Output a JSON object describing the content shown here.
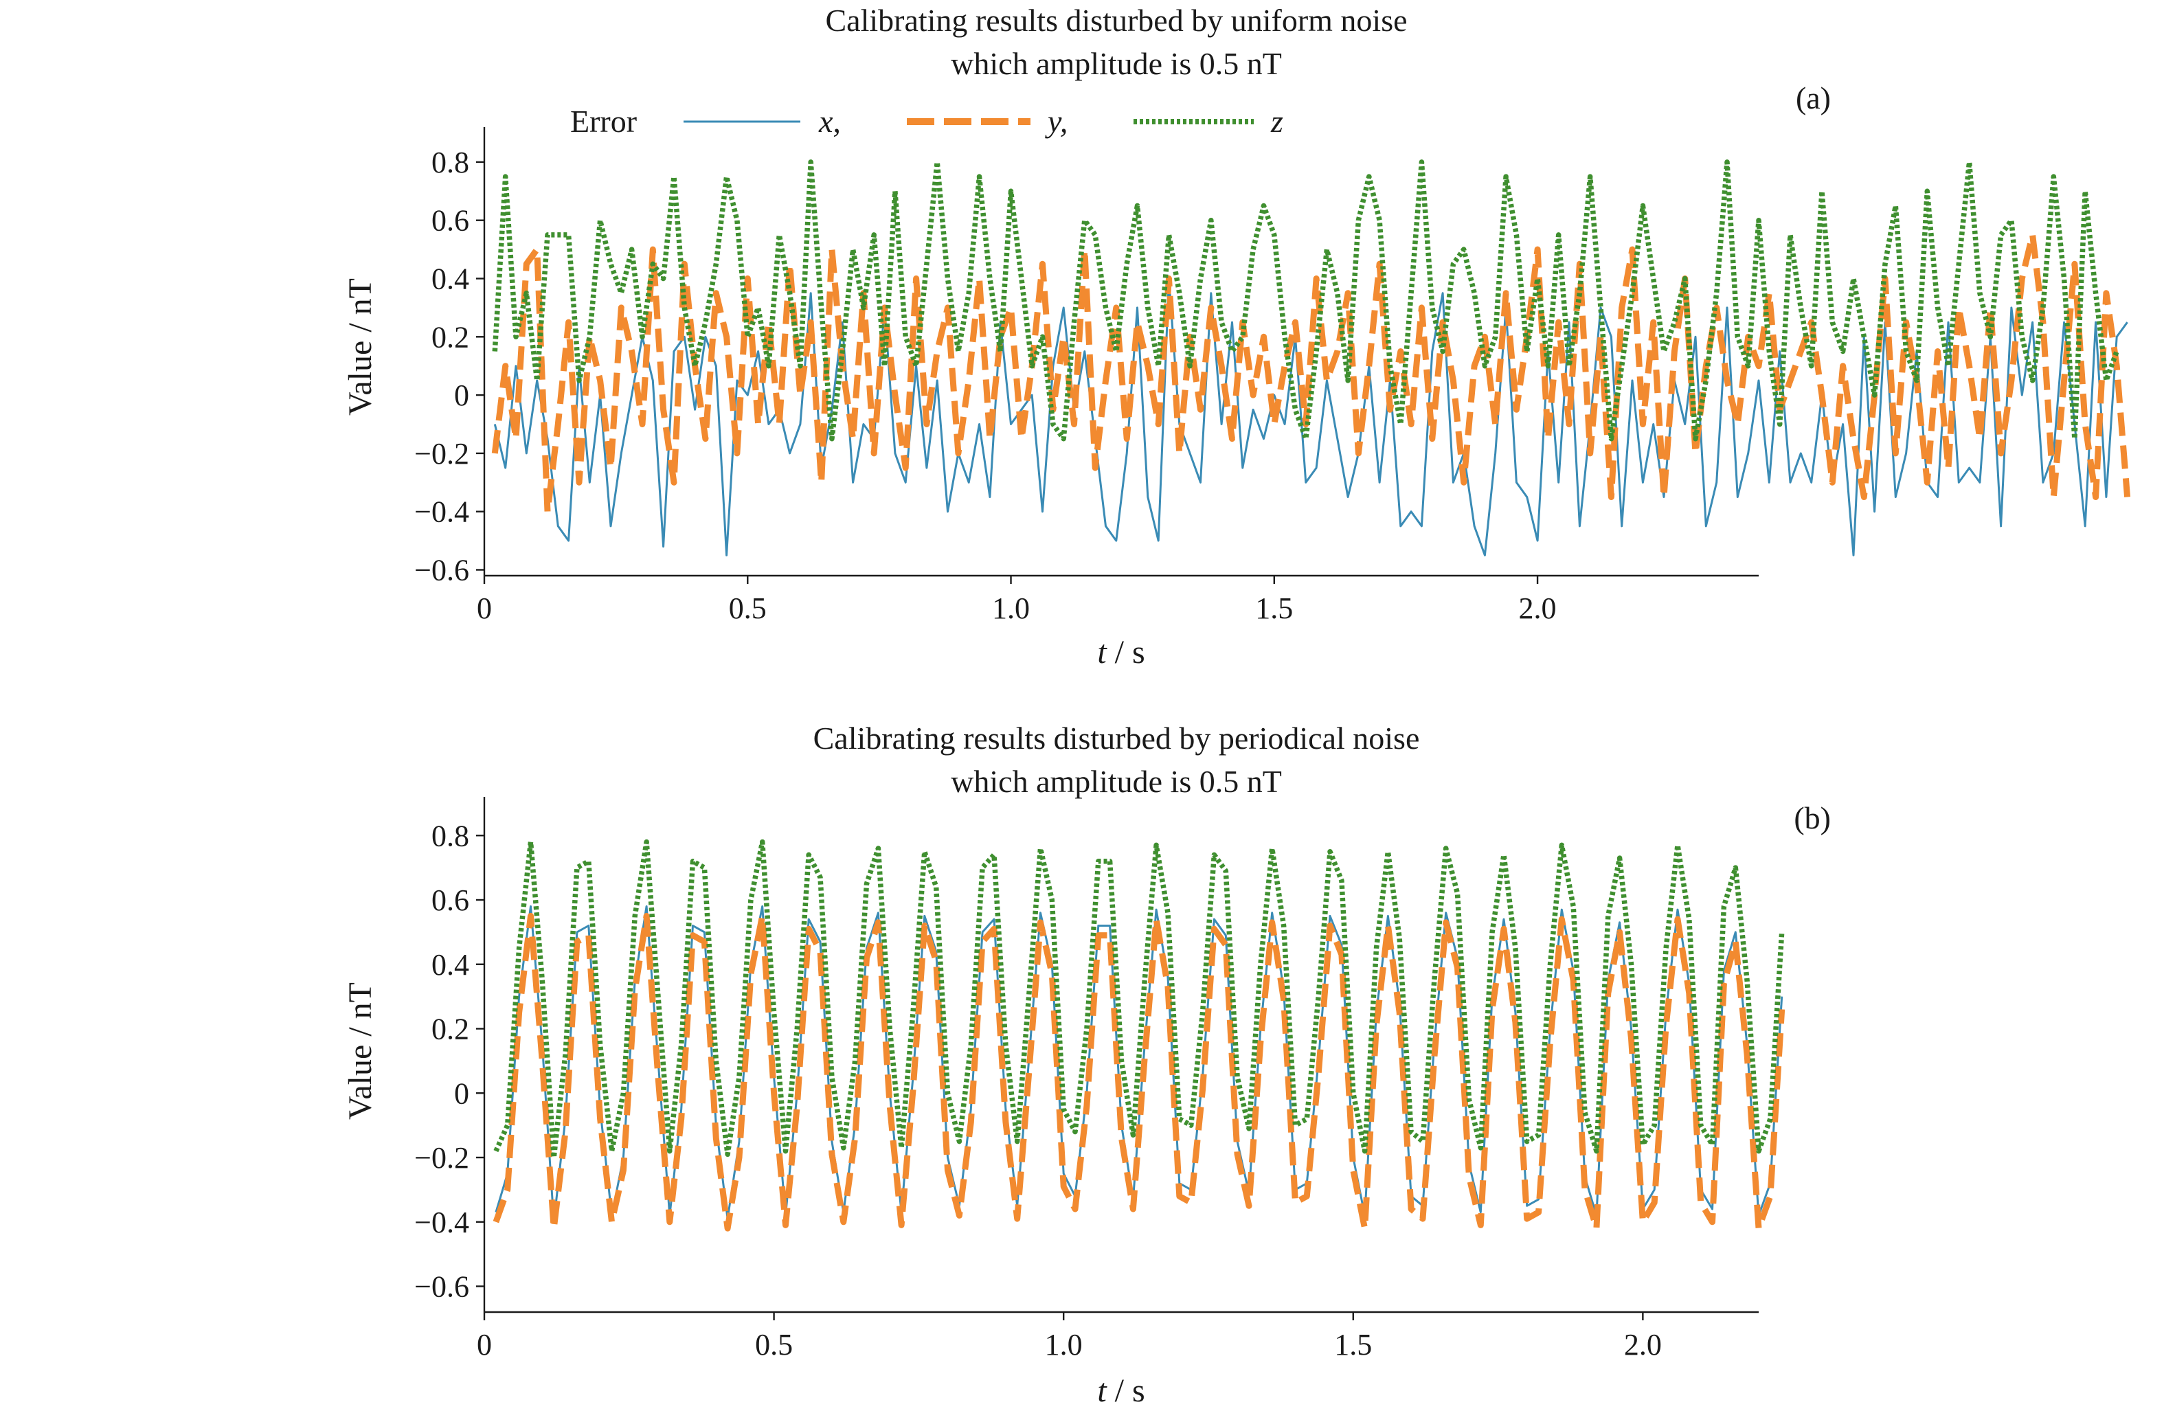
{
  "legend": {
    "heading": "Error",
    "entries": [
      {
        "label": "x,",
        "series": "x",
        "color": "#3a8bb5"
      },
      {
        "label": "y,",
        "series": "y",
        "color": "#f28a30"
      },
      {
        "label": "z",
        "series": "z",
        "color": "#3f8f2f"
      }
    ]
  },
  "chart_data": [
    {
      "type": "line",
      "panel_tag": "(a)",
      "title_line1": "Calibrating results disturbed by uniform noise",
      "title_line2": "which amplitude is 0.5 nT",
      "xlabel_var": "t",
      "xlabel_unit": " / s",
      "ylabel": "Value / nT",
      "xlim": [
        0,
        2.42
      ],
      "ylim": [
        -0.62,
        0.92
      ],
      "xticks": [
        0,
        0.5,
        1.0,
        1.5,
        2.0
      ],
      "xtick_labels": [
        "0",
        "0.5",
        "1.0",
        "1.5",
        "2.0"
      ],
      "yticks": [
        -0.6,
        -0.4,
        -0.2,
        0,
        0.2,
        0.4,
        0.6,
        0.8
      ],
      "ytick_labels": [
        "−0.6",
        "−0.4",
        "−0.2",
        "0",
        "0.2",
        "0.4",
        "0.6",
        "0.8"
      ],
      "x_start": 0.02,
      "x_step": 0.02,
      "series": [
        {
          "name": "x",
          "color": "#3a8bb5",
          "style": "solid",
          "values": [
            -0.1,
            -0.25,
            0.1,
            -0.2,
            0.05,
            -0.15,
            -0.45,
            -0.5,
            0.1,
            -0.3,
            0.0,
            -0.45,
            -0.2,
            0.0,
            0.2,
            0.05,
            -0.52,
            0.15,
            0.2,
            -0.05,
            0.2,
            0.1,
            -0.55,
            0.05,
            0.0,
            0.15,
            -0.1,
            -0.05,
            -0.2,
            -0.1,
            0.35,
            -0.25,
            -0.05,
            0.25,
            -0.3,
            -0.1,
            -0.15,
            0.3,
            -0.2,
            -0.3,
            0.1,
            -0.25,
            0.05,
            -0.4,
            -0.2,
            -0.3,
            -0.1,
            -0.35,
            0.25,
            -0.1,
            -0.05,
            0.0,
            -0.4,
            0.1,
            0.3,
            -0.05,
            0.15,
            -0.15,
            -0.45,
            -0.5,
            -0.2,
            0.3,
            -0.35,
            -0.5,
            0.4,
            -0.1,
            -0.2,
            -0.3,
            0.35,
            -0.1,
            0.25,
            -0.25,
            -0.05,
            -0.15,
            0.0,
            -0.1,
            0.2,
            -0.3,
            -0.25,
            0.05,
            -0.15,
            -0.35,
            -0.2,
            0.1,
            -0.3,
            0.05,
            -0.45,
            -0.4,
            -0.45,
            0.15,
            0.35,
            -0.3,
            -0.2,
            -0.45,
            -0.55,
            -0.2,
            0.3,
            -0.3,
            -0.35,
            -0.5,
            0.15,
            -0.3,
            0.25,
            -0.45,
            -0.1,
            0.3,
            0.2,
            -0.45,
            0.05,
            -0.3,
            -0.1,
            -0.35,
            0.05,
            -0.1,
            0.2,
            -0.45,
            -0.3,
            0.3,
            -0.35,
            -0.2,
            0.05,
            -0.3,
            0.15,
            -0.3,
            -0.2,
            -0.3,
            0.0,
            -0.3,
            -0.1,
            -0.55,
            0.2,
            -0.4,
            0.25,
            -0.35,
            -0.2,
            0.15,
            -0.3,
            -0.35,
            0.25,
            -0.3,
            -0.25,
            -0.3,
            0.2,
            -0.45,
            0.3,
            0.0,
            0.25,
            -0.3,
            -0.2,
            0.25,
            -0.1,
            -0.45,
            0.25,
            -0.35,
            0.2,
            0.25
          ]
        },
        {
          "name": "y",
          "color": "#f28a30",
          "style": "dashed",
          "values": [
            -0.2,
            0.1,
            -0.15,
            0.45,
            0.5,
            -0.4,
            -0.1,
            0.25,
            -0.3,
            0.2,
            0.05,
            -0.25,
            0.3,
            0.15,
            -0.1,
            0.5,
            -0.05,
            -0.3,
            0.45,
            0.1,
            -0.15,
            0.35,
            0.2,
            -0.2,
            0.4,
            -0.1,
            0.25,
            -0.1,
            0.45,
            0.0,
            0.25,
            -0.3,
            0.5,
            0.1,
            -0.15,
            0.35,
            -0.2,
            0.3,
            0.0,
            -0.25,
            0.4,
            -0.1,
            0.15,
            0.3,
            -0.2,
            0.05,
            0.4,
            -0.15,
            0.2,
            0.3,
            -0.15,
            0.1,
            0.45,
            -0.05,
            0.2,
            -0.1,
            0.5,
            -0.25,
            0.05,
            0.3,
            -0.15,
            0.25,
            0.1,
            -0.1,
            0.4,
            -0.2,
            0.2,
            -0.05,
            0.3,
            0.1,
            -0.15,
            0.25,
            0.0,
            0.2,
            -0.1,
            0.1,
            0.25,
            -0.1,
            0.4,
            0.05,
            0.15,
            0.35,
            -0.2,
            0.1,
            0.45,
            -0.05,
            0.15,
            -0.1,
            0.3,
            -0.15,
            0.25,
            0.05,
            -0.3,
            0.1,
            0.2,
            -0.1,
            0.35,
            -0.05,
            0.2,
            0.5,
            -0.15,
            0.25,
            -0.1,
            0.45,
            -0.2,
            0.2,
            -0.35,
            0.3,
            0.5,
            -0.1,
            0.25,
            -0.35,
            0.15,
            0.4,
            -0.2,
            0.1,
            0.3,
            0.05,
            -0.1,
            0.2,
            0.1,
            0.35,
            -0.05,
            0.05,
            0.15,
            0.25,
            0.0,
            -0.3,
            0.1,
            -0.15,
            -0.35,
            0.0,
            0.4,
            -0.2,
            0.25,
            0.05,
            -0.3,
            0.15,
            -0.25,
            0.3,
            0.1,
            -0.15,
            0.3,
            -0.2,
            0.05,
            0.4,
            0.55,
            0.25,
            -0.35,
            0.05,
            0.45,
            -0.1,
            -0.35,
            0.35,
            0.1,
            -0.35
          ]
        },
        {
          "name": "z",
          "color": "#3f8f2f",
          "style": "dotted",
          "values": [
            0.15,
            0.75,
            0.2,
            0.35,
            0.05,
            0.55,
            0.55,
            0.55,
            0.05,
            0.2,
            0.6,
            0.45,
            0.35,
            0.5,
            0.2,
            0.45,
            0.4,
            0.75,
            0.3,
            0.1,
            0.25,
            0.45,
            0.75,
            0.6,
            0.2,
            0.3,
            0.1,
            0.55,
            0.35,
            0.1,
            0.8,
            0.3,
            -0.15,
            0.15,
            0.5,
            0.3,
            0.55,
            0.1,
            0.7,
            0.2,
            0.1,
            0.45,
            0.8,
            0.4,
            0.15,
            0.35,
            0.75,
            0.4,
            0.15,
            0.7,
            0.4,
            0.1,
            0.2,
            -0.1,
            -0.15,
            0.25,
            0.6,
            0.55,
            0.3,
            0.15,
            0.45,
            0.65,
            0.3,
            0.1,
            0.55,
            0.35,
            0.1,
            0.4,
            0.6,
            0.25,
            0.15,
            0.2,
            0.5,
            0.65,
            0.55,
            0.2,
            -0.05,
            -0.15,
            0.15,
            0.5,
            0.35,
            0.05,
            0.6,
            0.75,
            0.6,
            0.1,
            -0.1,
            0.35,
            0.8,
            0.3,
            0.15,
            0.45,
            0.5,
            0.35,
            0.1,
            0.2,
            0.75,
            0.55,
            0.15,
            0.4,
            0.1,
            0.55,
            0.1,
            0.35,
            0.75,
            0.3,
            -0.15,
            0.1,
            0.35,
            0.65,
            0.4,
            0.15,
            0.25,
            0.4,
            -0.15,
            0.05,
            0.35,
            0.8,
            0.2,
            0.1,
            0.6,
            0.15,
            -0.1,
            0.55,
            0.3,
            0.1,
            0.7,
            0.25,
            0.15,
            0.4,
            0.2,
            0.0,
            0.45,
            0.65,
            0.15,
            0.05,
            0.7,
            0.3,
            0.1,
            0.45,
            0.8,
            0.35,
            0.2,
            0.55,
            0.6,
            0.2,
            0.05,
            0.3,
            0.75,
            0.4,
            -0.15,
            0.7,
            0.35,
            0.05,
            0.15
          ]
        }
      ]
    },
    {
      "type": "line",
      "panel_tag": "(b)",
      "title_line1": "Calibrating results disturbed by periodical noise",
      "title_line2": "which amplitude is 0.5 nT",
      "xlabel_var": "t",
      "xlabel_unit": " / s",
      "ylabel": "Value / nT",
      "xlim": [
        0,
        2.2
      ],
      "ylim": [
        -0.68,
        0.92
      ],
      "xticks": [
        0,
        0.5,
        1.0,
        1.5,
        2.0
      ],
      "xtick_labels": [
        "0",
        "0.5",
        "1.0",
        "1.5",
        "2.0"
      ],
      "yticks": [
        -0.6,
        -0.4,
        -0.2,
        0,
        0.2,
        0.4,
        0.6,
        0.8
      ],
      "ytick_labels": [
        "−0.6",
        "−0.4",
        "−0.2",
        "0",
        "0.2",
        "0.4",
        "0.6",
        "0.8"
      ],
      "x_start": 0.02,
      "x_step": 0.02,
      "series": [
        {
          "name": "x",
          "color": "#3a8bb5",
          "style": "solid",
          "values": [
            -0.37,
            -0.25,
            0.3,
            0.58,
            0.15,
            -0.4,
            -0.08,
            0.5,
            0.52,
            -0.05,
            -0.38,
            -0.2,
            0.35,
            0.58,
            0.1,
            -0.38,
            -0.05,
            0.52,
            0.5,
            -0.1,
            -0.39,
            -0.15,
            0.4,
            0.58,
            0.05,
            -0.38,
            0.0,
            0.54,
            0.47,
            -0.15,
            -0.37,
            -0.1,
            0.45,
            0.56,
            0.0,
            -0.37,
            0.05,
            0.55,
            0.44,
            -0.2,
            -0.35,
            -0.05,
            0.5,
            0.54,
            -0.05,
            -0.35,
            0.1,
            0.56,
            0.4,
            -0.25,
            -0.32,
            0.0,
            0.52,
            0.52,
            -0.1,
            -0.33,
            0.15,
            0.57,
            0.36,
            -0.28,
            -0.3,
            0.05,
            0.54,
            0.49,
            -0.15,
            -0.31,
            0.2,
            0.56,
            0.32,
            -0.3,
            -0.28,
            0.1,
            0.55,
            0.46,
            -0.2,
            -0.38,
            0.25,
            0.55,
            0.28,
            -0.32,
            -0.35,
            0.15,
            0.56,
            0.42,
            -0.22,
            -0.37,
            0.3,
            0.54,
            0.25,
            -0.35,
            -0.33,
            0.2,
            0.57,
            0.38,
            -0.26,
            -0.38,
            0.35,
            0.53,
            0.2,
            -0.36,
            -0.3,
            0.25,
            0.57,
            0.34,
            -0.3,
            -0.36,
            0.38,
            0.5,
            0.15,
            -0.38,
            -0.28,
            0.3
          ]
        },
        {
          "name": "y",
          "color": "#f28a30",
          "style": "dashed",
          "values": [
            -0.4,
            -0.3,
            0.25,
            0.55,
            0.1,
            -0.42,
            -0.12,
            0.47,
            0.49,
            -0.08,
            -0.4,
            -0.24,
            0.32,
            0.55,
            0.05,
            -0.4,
            -0.08,
            0.49,
            0.47,
            -0.14,
            -0.42,
            -0.2,
            0.37,
            0.55,
            0.0,
            -0.41,
            -0.04,
            0.51,
            0.44,
            -0.19,
            -0.4,
            -0.14,
            0.42,
            0.53,
            -0.04,
            -0.41,
            0.01,
            0.52,
            0.41,
            -0.24,
            -0.38,
            -0.09,
            0.47,
            0.51,
            -0.09,
            -0.39,
            0.06,
            0.53,
            0.37,
            -0.29,
            -0.36,
            -0.04,
            0.49,
            0.49,
            -0.14,
            -0.36,
            0.11,
            0.54,
            0.33,
            -0.32,
            -0.34,
            0.01,
            0.51,
            0.46,
            -0.19,
            -0.35,
            0.16,
            0.53,
            0.29,
            -0.34,
            -0.32,
            0.06,
            0.52,
            0.43,
            -0.24,
            -0.42,
            0.21,
            0.52,
            0.25,
            -0.36,
            -0.39,
            0.11,
            0.53,
            0.39,
            -0.26,
            -0.41,
            0.26,
            0.51,
            0.22,
            -0.39,
            -0.37,
            0.16,
            0.54,
            0.35,
            -0.3,
            -0.42,
            0.31,
            0.5,
            0.17,
            -0.4,
            -0.34,
            0.21,
            0.54,
            0.31,
            -0.34,
            -0.4,
            0.34,
            0.47,
            0.12,
            -0.42,
            -0.32,
            0.26
          ]
        },
        {
          "name": "z",
          "color": "#3f8f2f",
          "style": "dotted",
          "values": [
            -0.18,
            -0.1,
            0.45,
            0.78,
            0.35,
            -0.2,
            0.12,
            0.7,
            0.72,
            0.15,
            -0.18,
            0.0,
            0.55,
            0.78,
            0.3,
            -0.18,
            0.15,
            0.72,
            0.7,
            0.1,
            -0.19,
            0.05,
            0.6,
            0.78,
            0.25,
            -0.18,
            0.2,
            0.74,
            0.67,
            0.05,
            -0.17,
            0.1,
            0.65,
            0.76,
            0.2,
            -0.17,
            0.25,
            0.75,
            0.64,
            0.0,
            -0.15,
            0.15,
            0.7,
            0.74,
            0.15,
            -0.15,
            0.3,
            0.76,
            0.6,
            -0.05,
            -0.12,
            0.2,
            0.72,
            0.72,
            0.1,
            -0.13,
            0.35,
            0.77,
            0.56,
            -0.08,
            -0.1,
            0.25,
            0.74,
            0.69,
            0.05,
            -0.11,
            0.4,
            0.76,
            0.52,
            -0.1,
            -0.08,
            0.3,
            0.75,
            0.66,
            0.0,
            -0.18,
            0.45,
            0.75,
            0.48,
            -0.12,
            -0.15,
            0.35,
            0.76,
            0.62,
            -0.02,
            -0.17,
            0.5,
            0.74,
            0.45,
            -0.15,
            -0.13,
            0.4,
            0.77,
            0.58,
            -0.06,
            -0.18,
            0.55,
            0.73,
            0.4,
            -0.16,
            -0.1,
            0.45,
            0.77,
            0.54,
            -0.1,
            -0.16,
            0.58,
            0.7,
            0.35,
            -0.18,
            -0.08,
            0.5
          ]
        }
      ]
    }
  ]
}
